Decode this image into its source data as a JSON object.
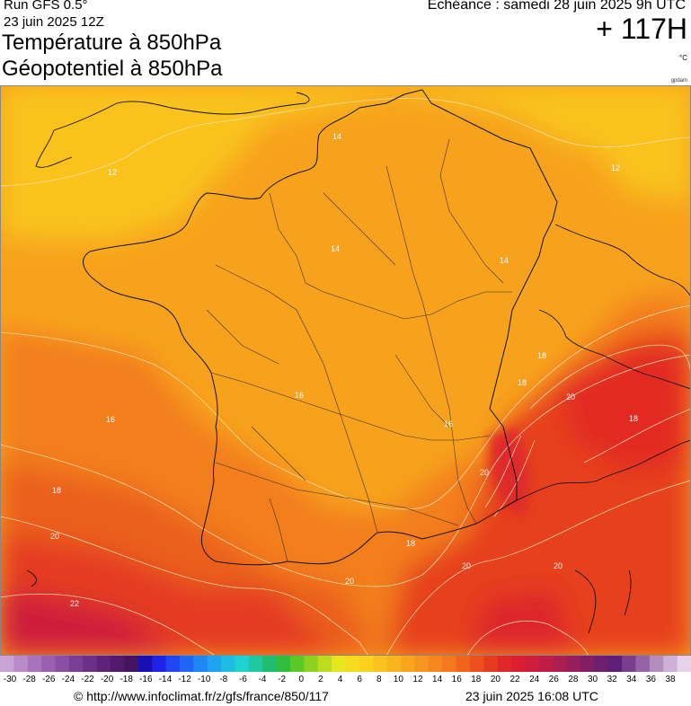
{
  "header": {
    "run": "Run GFS 0.5°",
    "run_date": "23 juin 2025 12Z",
    "title_line1": "Température à 850hPa",
    "title_line2": "Géopotentiel à 850hPa",
    "echeance": "Echéance : samedi 28 juin 2025 9h UTC",
    "lead_time": "+ 117H",
    "unit": "°C",
    "credit": "gpdam"
  },
  "map": {
    "contour_labels": [
      "14",
      "12",
      "12",
      "14",
      "14",
      "16",
      "16",
      "16",
      "18",
      "18",
      "20",
      "18",
      "20",
      "20",
      "18",
      "20",
      "20",
      "22",
      "20"
    ]
  },
  "colorbar": {
    "colors": [
      "#c9a3d4",
      "#b98ac9",
      "#a872bd",
      "#9960b1",
      "#8a4ea4",
      "#7b3e96",
      "#6d2f88",
      "#5f227a",
      "#521a6d",
      "#45145f",
      "#1a0fb5",
      "#1f23e6",
      "#1f46f0",
      "#1f66f5",
      "#1f86f5",
      "#1fa3f0",
      "#1fbce6",
      "#1fd2d2",
      "#1ec8a0",
      "#1ebe6e",
      "#2fbe3c",
      "#5ac828",
      "#8cd21e",
      "#bedc1e",
      "#e6e61e",
      "#f5dc1e",
      "#fad21e",
      "#fac31e",
      "#fab41e",
      "#faa51e",
      "#f7961e",
      "#f5871e",
      "#f5781e",
      "#f0641e",
      "#eb501e",
      "#e63c1e",
      "#e12828",
      "#dc1e32",
      "#cd1e3c",
      "#be1e46",
      "#aa1e50",
      "#961e5a",
      "#821e64",
      "#6e1e6e",
      "#5f1e78",
      "#7a3e8c",
      "#9664a5",
      "#b48cbe",
      "#cfb0d6",
      "#e6d2eb"
    ],
    "ticks": [
      "-30",
      "-28",
      "-26",
      "-24",
      "-22",
      "-20",
      "-18",
      "-16",
      "-14",
      "-12",
      "-10",
      "-8",
      "-6",
      "-4",
      "-2",
      "0",
      "2",
      "4",
      "6",
      "8",
      "10",
      "12",
      "14",
      "16",
      "18",
      "20",
      "22",
      "24",
      "26",
      "28",
      "30",
      "32",
      "34",
      "36",
      "38"
    ]
  },
  "footer": {
    "url": "© http://www.infoclimat.fr/z/gfs/france/850/117",
    "generated": "23 juin 2025 16:08 UTC"
  }
}
